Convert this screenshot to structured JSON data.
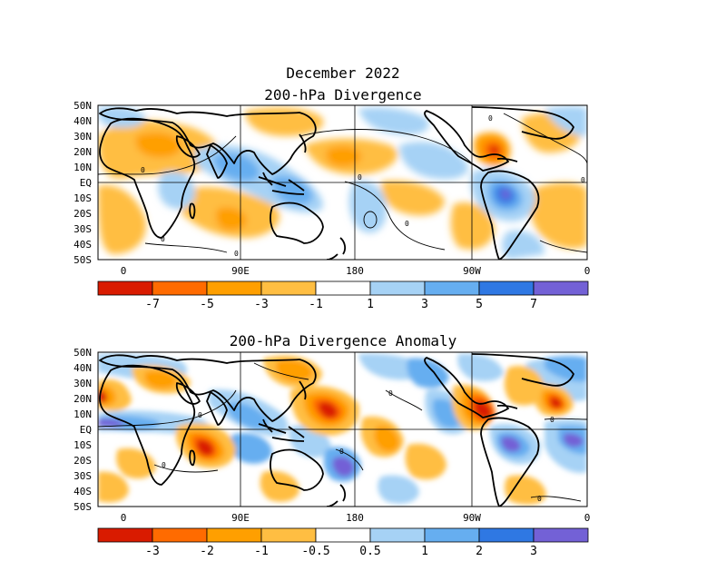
{
  "figure": {
    "title": "December 2022"
  },
  "panels": [
    {
      "title": "200-hPa Divergence",
      "lat_labels": [
        "50N",
        "40N",
        "30N",
        "20N",
        "10N",
        "EQ",
        "10S",
        "20S",
        "30S",
        "40S",
        "50S"
      ],
      "lon_labels": [
        "0",
        "90E",
        "180",
        "90W",
        "0"
      ],
      "contour_labels": [
        "0",
        "0",
        "0",
        "0",
        "0",
        "0",
        "0"
      ],
      "colorbar": {
        "colors": [
          "#d91b00",
          "#ff6b00",
          "#ff9f00",
          "#ffbe42",
          "#ffffff",
          "#a6d2f5",
          "#66aef0",
          "#2f78e3",
          "#7361d6"
        ],
        "labels": [
          "-7",
          "-5",
          "-3",
          "-1",
          "1",
          "3",
          "5",
          "7"
        ]
      }
    },
    {
      "title": "200-hPa Divergence Anomaly",
      "lat_labels": [
        "50N",
        "40N",
        "30N",
        "20N",
        "10N",
        "EQ",
        "10S",
        "20S",
        "30S",
        "40S",
        "50S"
      ],
      "lon_labels": [
        "0",
        "90E",
        "180",
        "90W",
        "0"
      ],
      "contour_labels": [
        "0",
        "0",
        "0",
        "0",
        "0",
        "0"
      ],
      "colorbar": {
        "colors": [
          "#d91b00",
          "#ff6b00",
          "#ff9f00",
          "#ffbe42",
          "#ffffff",
          "#a6d2f5",
          "#66aef0",
          "#2f78e3",
          "#7361d6"
        ],
        "labels": [
          "-3",
          "-2",
          "-1",
          "-0.5",
          "0.5",
          "1",
          "2",
          "3"
        ]
      }
    }
  ]
}
